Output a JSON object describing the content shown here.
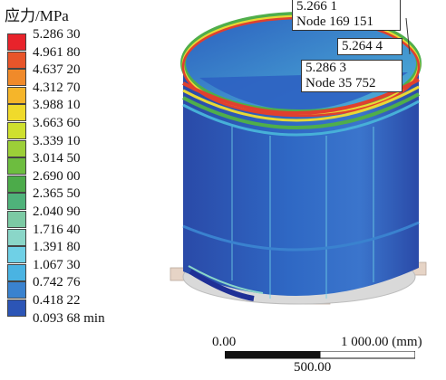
{
  "legend": {
    "title": "应力/MPa",
    "items": [
      {
        "label": "5.286 30",
        "color": "#e8232b"
      },
      {
        "label": "4.961 80",
        "color": "#e8552a"
      },
      {
        "label": "4.637 20",
        "color": "#f08a2a"
      },
      {
        "label": "4.312 70",
        "color": "#f5b52a"
      },
      {
        "label": "3.988 10",
        "color": "#f0da2b"
      },
      {
        "label": "3.663 60",
        "color": "#cfe02e"
      },
      {
        "label": "3.339 10",
        "color": "#9ccf38"
      },
      {
        "label": "3.014 50",
        "color": "#6dbd3f"
      },
      {
        "label": "2.690 00",
        "color": "#4cab4a"
      },
      {
        "label": "2.365 50",
        "color": "#4fb27a"
      },
      {
        "label": "2.040 90",
        "color": "#7ccaa4"
      },
      {
        "label": "1.716 40",
        "color": "#8ad6c8"
      },
      {
        "label": "1.391 80",
        "color": "#6fd0e6"
      },
      {
        "label": "1.067 30",
        "color": "#4ab3e2"
      },
      {
        "label": "0.742 76",
        "color": "#3a82cf"
      },
      {
        "label": "0.418 22",
        "color": "#2c55b6"
      },
      {
        "label": "0.093 68  min",
        "color": "#1f2f96"
      }
    ]
  },
  "callouts": [
    {
      "lines": [
        "5.266 1",
        "Node 169 151"
      ]
    },
    {
      "lines": [
        "5.264 4"
      ]
    },
    {
      "lines": [
        "5.286 3",
        "Node 35 752"
      ]
    }
  ],
  "scale_bar": {
    "left_label": "0.00",
    "right_label": "1 000.00 (mm)",
    "mid_label": "500.00"
  },
  "colors": {
    "shell_main": "#2f68c4",
    "shell_dark": "#2a4aa8",
    "inner_light": "#47b0d8",
    "rim_red": "#e0402e",
    "rim_yellow": "#e7d835",
    "rim_green": "#4fae4a",
    "base_gray": "#d6d6d6"
  }
}
